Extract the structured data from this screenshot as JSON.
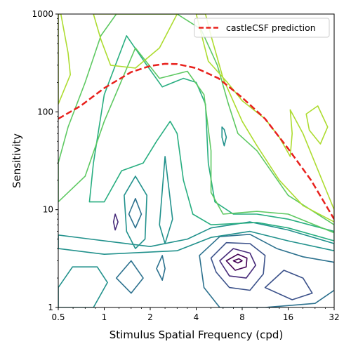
{
  "chart_data": {
    "type": "contour",
    "xlabel": "Stimulus Spatial Frequency (cpd)",
    "ylabel": "Sensitivity",
    "x_scale": "log2",
    "y_scale": "log10",
    "xlim": [
      0.5,
      32
    ],
    "ylim": [
      1,
      1000
    ],
    "x_ticks": [
      0.5,
      1,
      2,
      4,
      8,
      16,
      32
    ],
    "x_tick_labels": [
      "0.5",
      "1",
      "2",
      "4",
      "8",
      "16",
      "32"
    ],
    "y_ticks": [
      1,
      10,
      100,
      1000
    ],
    "y_tick_labels": [
      "1",
      "10",
      "100",
      "1000"
    ],
    "grid": false,
    "colormap": "viridis",
    "legend": {
      "placement": "top-right",
      "entries": [
        {
          "label": "castleCSF prediction",
          "color": "#e8201c",
          "style": "dashed"
        }
      ]
    },
    "series": [
      {
        "name": "castleCSF prediction",
        "color": "#e8201c",
        "points": [
          [
            0.5,
            85
          ],
          [
            0.7,
            115
          ],
          [
            1.0,
            175
          ],
          [
            1.5,
            255
          ],
          [
            2.0,
            295
          ],
          [
            2.5,
            310
          ],
          [
            3.0,
            308
          ],
          [
            4.0,
            280
          ],
          [
            5.6,
            220
          ],
          [
            8.0,
            140
          ],
          [
            11.3,
            85
          ],
          [
            16.0,
            42
          ],
          [
            22.6,
            20
          ],
          [
            32.0,
            8
          ]
        ]
      }
    ],
    "contour_levels": [
      {
        "color": "#440154",
        "rings": [
          [
            [
              7.0,
              3.0
            ],
            [
              7.6,
              3.15
            ],
            [
              8.0,
              3.0
            ],
            [
              7.5,
              2.85
            ]
          ],
          [
            [
              6.3,
              3.0
            ],
            [
              7.5,
              3.5
            ],
            [
              8.6,
              3.2
            ],
            [
              8.5,
              2.6
            ],
            [
              7.2,
              2.4
            ]
          ]
        ]
      },
      {
        "color": "#472b7a",
        "rings": [
          [
            [
              5.7,
              3.0
            ],
            [
              7.0,
              4.0
            ],
            [
              9.0,
              3.6
            ],
            [
              9.8,
              2.7
            ],
            [
              8.5,
              2.0
            ],
            [
              6.6,
              2.1
            ]
          ],
          [
            [
              1.15,
              7.5
            ],
            [
              1.18,
              9.0
            ],
            [
              1.23,
              7.5
            ],
            [
              1.18,
              6.2
            ]
          ]
        ]
      },
      {
        "color": "#3b518a",
        "rings": [
          [
            [
              5.0,
              3.2
            ],
            [
              6.3,
              4.6
            ],
            [
              9.0,
              4.5
            ],
            [
              11.3,
              3.4
            ],
            [
              11.0,
              2.2
            ],
            [
              9.0,
              1.5
            ],
            [
              6.6,
              1.6
            ],
            [
              5.4,
              2.3
            ]
          ],
          [
            [
              11.3,
              1.6
            ],
            [
              15.0,
              2.4
            ],
            [
              20.0,
              2.0
            ],
            [
              23.0,
              1.4
            ],
            [
              17.0,
              1.2
            ]
          ]
        ]
      },
      {
        "color": "#2c718e",
        "rings": [
          [
            [
              4.2,
              3.4
            ],
            [
              5.7,
              5.3
            ],
            [
              9.0,
              5.6
            ],
            [
              13.5,
              4.0
            ],
            [
              20.0,
              3.3
            ],
            [
              32.0,
              2.9
            ],
            [
              32.0,
              1.5
            ],
            [
              24.0,
              1.1
            ],
            [
              11.3,
              1.0
            ],
            [
              5.7,
              1.0
            ],
            [
              4.5,
              1.6
            ]
          ],
          [
            [
              1.2,
              2.0
            ],
            [
              1.5,
              3.0
            ],
            [
              1.8,
              2.0
            ],
            [
              1.5,
              1.4
            ]
          ],
          [
            [
              2.2,
              2.5
            ],
            [
              2.4,
              3.4
            ],
            [
              2.5,
              2.5
            ],
            [
              2.4,
              1.9
            ]
          ],
          [
            [
              1.45,
              9.0
            ],
            [
              1.6,
              13.0
            ],
            [
              1.75,
              9.0
            ],
            [
              1.6,
              6.5
            ]
          ]
        ]
      },
      {
        "color": "#21918c",
        "rings": [
          [
            [
              0.5,
              1.6
            ],
            [
              0.62,
              2.6
            ],
            [
              0.9,
              2.6
            ],
            [
              1.05,
              1.8
            ],
            [
              0.85,
              1.0
            ],
            [
              0.5,
              1.0
            ]
          ],
          [
            [
              1.35,
              14.0
            ],
            [
              1.6,
              22.0
            ],
            [
              1.9,
              14.0
            ],
            [
              1.85,
              5.0
            ],
            [
              1.6,
              4.0
            ],
            [
              1.4,
              6.0
            ]
          ],
          [
            [
              2.3,
              7.0
            ],
            [
              2.5,
              35.0
            ],
            [
              2.8,
              8.0
            ],
            [
              2.5,
              4.5
            ]
          ],
          [
            [
              5.9,
              70.0
            ],
            [
              6.1,
              66.0
            ],
            [
              6.3,
              55.0
            ],
            [
              6.1,
              45.0
            ],
            [
              5.9,
              55.0
            ]
          ],
          [
            [
              0.5,
              5.5
            ],
            [
              1.0,
              4.8
            ],
            [
              2.0,
              4.2
            ],
            [
              3.5,
              5.0
            ],
            [
              5.0,
              6.5
            ],
            [
              9.0,
              7.5
            ],
            [
              16.0,
              6.2
            ],
            [
              32.0,
              4.5
            ],
            [
              32.0,
              3.8
            ],
            [
              16.0,
              4.8
            ],
            [
              9.0,
              6.0
            ],
            [
              5.0,
              5.2
            ],
            [
              3.0,
              3.8
            ],
            [
              1.0,
              3.5
            ],
            [
              0.5,
              4.0
            ]
          ]
        ]
      },
      {
        "color": "#28ae80",
        "rings": [
          [
            [
              0.85,
              30.0
            ],
            [
              1.0,
              150.0
            ],
            [
              1.4,
              600.0
            ],
            [
              1.9,
              300.0
            ],
            [
              2.4,
              180.0
            ],
            [
              3.3,
              220.0
            ],
            [
              4.0,
              200.0
            ],
            [
              4.6,
              120.0
            ],
            [
              4.8,
              30.0
            ],
            [
              5.3,
              12.0
            ],
            [
              7.0,
              9.0
            ],
            [
              10.0,
              9.0
            ],
            [
              16.0,
              8.0
            ],
            [
              32.0,
              6.0
            ],
            [
              32.0,
              4.8
            ],
            [
              16.0,
              6.5
            ],
            [
              10.0,
              7.4
            ],
            [
              5.0,
              7.0
            ],
            [
              3.8,
              9.0
            ],
            [
              3.3,
              20.0
            ],
            [
              3.0,
              60.0
            ],
            [
              2.7,
              80.0
            ],
            [
              2.2,
              50.0
            ],
            [
              1.8,
              30.0
            ],
            [
              1.3,
              25.0
            ],
            [
              1.0,
              12.0
            ],
            [
              0.8,
              12.0
            ]
          ]
        ]
      },
      {
        "color": "#5ec962",
        "rings": [
          [
            [
              0.5,
              30.0
            ],
            [
              0.58,
              70.0
            ],
            [
              0.75,
              200.0
            ],
            [
              0.95,
              600.0
            ],
            [
              1.2,
              1000.0
            ],
            [
              3.0,
              1000.0
            ],
            [
              4.3,
              700.0
            ],
            [
              5.5,
              300.0
            ],
            [
              6.5,
              120.0
            ],
            [
              7.5,
              60.0
            ],
            [
              10.0,
              40.0
            ],
            [
              16.0,
              14.0
            ],
            [
              32.0,
              7.0
            ],
            [
              32.0,
              5.8
            ],
            [
              16.0,
              9.0
            ],
            [
              10.0,
              9.6
            ],
            [
              6.0,
              9.0
            ],
            [
              5.0,
              15.0
            ],
            [
              5.0,
              40.0
            ],
            [
              4.5,
              150.0
            ],
            [
              3.5,
              260.0
            ],
            [
              2.3,
              220.0
            ],
            [
              1.6,
              450.0
            ],
            [
              1.0,
              80.0
            ],
            [
              0.75,
              22.0
            ],
            [
              0.5,
              12.0
            ]
          ]
        ]
      },
      {
        "color": "#addc30",
        "rings": [
          [
            [
              0.5,
              120.0
            ],
            [
              0.6,
              240.0
            ],
            [
              0.58,
              400.0
            ],
            [
              0.52,
              1000.0
            ],
            [
              0.5,
              1000.0
            ]
          ],
          [
            [
              0.85,
              1000.0
            ],
            [
              0.95,
              550.0
            ],
            [
              1.1,
              300.0
            ],
            [
              1.6,
              280.0
            ],
            [
              2.3,
              450.0
            ],
            [
              3.0,
              1000.0
            ]
          ],
          [
            [
              4.0,
              1000.0
            ],
            [
              4.8,
              330.0
            ],
            [
              6.4,
              200.0
            ],
            [
              8.0,
              130.0
            ],
            [
              11.3,
              85.0
            ],
            [
              14.0,
              55.0
            ],
            [
              16.5,
              35.0
            ],
            [
              17.0,
              60.0
            ],
            [
              16.5,
              105.0
            ],
            [
              20.0,
              60.0
            ],
            [
              32.0,
              10.0
            ],
            [
              32.0,
              7.5
            ],
            [
              20.0,
              11.0
            ],
            [
              14.0,
              20.0
            ],
            [
              10.0,
              45.0
            ],
            [
              8.0,
              80.0
            ],
            [
              6.0,
              220.0
            ],
            [
              5.0,
              600.0
            ],
            [
              4.6,
              1000.0
            ]
          ],
          [
            [
              21.0,
              95.0
            ],
            [
              25.0,
              115.0
            ],
            [
              29.0,
              70.0
            ],
            [
              26.0,
              47.0
            ],
            [
              22.0,
              65.0
            ]
          ]
        ]
      }
    ]
  }
}
